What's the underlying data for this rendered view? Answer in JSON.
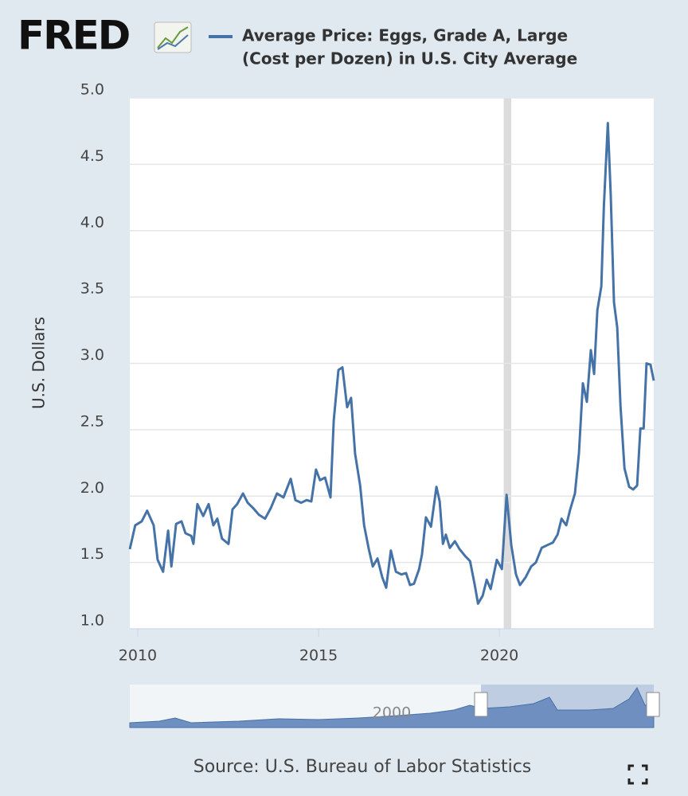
{
  "chart_data": {
    "type": "line",
    "logo": "FRED",
    "title": [
      "Average Price: Eggs, Grade A, Large",
      "(Cost per Dozen) in U.S. City Average"
    ],
    "y_label": "U.S. Dollars",
    "source": "Source: U.S. Bureau of Labor Statistics",
    "navigator_label": "2000",
    "grid": true,
    "xlim": [
      2009.78,
      2024.27
    ],
    "xticks": [
      2010,
      2015,
      2020
    ],
    "ylim": [
      1,
      5
    ],
    "yticks": [
      {
        "value": 1,
        "label": "1.0"
      },
      1.5,
      {
        "value": 2,
        "label": "2.0"
      },
      2.5,
      {
        "value": 3,
        "label": "3.0"
      },
      3.5,
      {
        "value": 4,
        "label": "4.0"
      },
      4.5,
      {
        "value": 5,
        "label": "5.0"
      }
    ],
    "shaded_ranges": [
      [
        2020.12,
        2020.33
      ]
    ],
    "x": [
      2009.78,
      2009.93,
      2010.11,
      2010.26,
      2010.44,
      2010.55,
      2010.7,
      2010.84,
      2010.93,
      2011.06,
      2011.21,
      2011.32,
      2011.48,
      2011.54,
      2011.65,
      2011.81,
      2011.96,
      2012.09,
      2012.2,
      2012.33,
      2012.51,
      2012.62,
      2012.75,
      2012.91,
      2013.04,
      2013.19,
      2013.35,
      2013.52,
      2013.68,
      2013.85,
      2014.03,
      2014.23,
      2014.36,
      2014.52,
      2014.67,
      2014.8,
      2014.93,
      2015.04,
      2015.18,
      2015.33,
      2015.42,
      2015.55,
      2015.66,
      2015.79,
      2015.9,
      2016.01,
      2016.15,
      2016.26,
      2016.39,
      2016.5,
      2016.63,
      2016.76,
      2016.87,
      2017.0,
      2017.14,
      2017.29,
      2017.42,
      2017.53,
      2017.64,
      2017.78,
      2017.86,
      2017.97,
      2018.11,
      2018.26,
      2018.35,
      2018.44,
      2018.52,
      2018.63,
      2018.77,
      2018.9,
      2019.05,
      2019.19,
      2019.32,
      2019.41,
      2019.54,
      2019.65,
      2019.76,
      2019.93,
      2020.07,
      2020.2,
      2020.33,
      2020.46,
      2020.57,
      2020.73,
      2020.88,
      2021.01,
      2021.17,
      2021.32,
      2021.48,
      2021.61,
      2021.72,
      2021.85,
      2021.96,
      2022.09,
      2022.2,
      2022.31,
      2022.42,
      2022.53,
      2022.62,
      2022.71,
      2022.82,
      2022.89,
      2023.0,
      2023.08,
      2023.17,
      2023.26,
      2023.35,
      2023.46,
      2023.59,
      2023.7,
      2023.81,
      2023.9,
      2023.99,
      2024.07,
      2024.18,
      2024.27
    ],
    "series": [
      {
        "name": "Average Price: Eggs, Grade A, Large (Cost per Dozen) in U.S. City Average",
        "color": "#4572a7",
        "values": [
          1.6,
          1.78,
          1.81,
          1.89,
          1.78,
          1.52,
          1.43,
          1.74,
          1.47,
          1.79,
          1.81,
          1.72,
          1.7,
          1.64,
          1.94,
          1.85,
          1.94,
          1.78,
          1.83,
          1.68,
          1.64,
          1.9,
          1.94,
          2.02,
          1.95,
          1.91,
          1.86,
          1.83,
          1.91,
          2.02,
          1.99,
          2.13,
          1.97,
          1.95,
          1.97,
          1.96,
          2.2,
          2.12,
          2.14,
          1.99,
          2.57,
          2.95,
          2.97,
          2.67,
          2.74,
          2.32,
          2.08,
          1.78,
          1.6,
          1.47,
          1.53,
          1.39,
          1.31,
          1.59,
          1.43,
          1.41,
          1.42,
          1.33,
          1.34,
          1.45,
          1.56,
          1.84,
          1.77,
          2.07,
          1.96,
          1.64,
          1.71,
          1.61,
          1.66,
          1.6,
          1.55,
          1.51,
          1.33,
          1.19,
          1.25,
          1.37,
          1.3,
          1.52,
          1.45,
          2.01,
          1.63,
          1.41,
          1.33,
          1.39,
          1.47,
          1.5,
          1.61,
          1.63,
          1.65,
          1.71,
          1.83,
          1.78,
          1.9,
          2.02,
          2.32,
          2.85,
          2.71,
          3.1,
          2.92,
          3.4,
          3.58,
          4.18,
          4.81,
          4.27,
          3.46,
          3.27,
          2.68,
          2.21,
          2.07,
          2.05,
          2.08,
          2.51,
          2.51,
          3.0,
          2.99,
          2.87
        ]
      }
    ]
  }
}
